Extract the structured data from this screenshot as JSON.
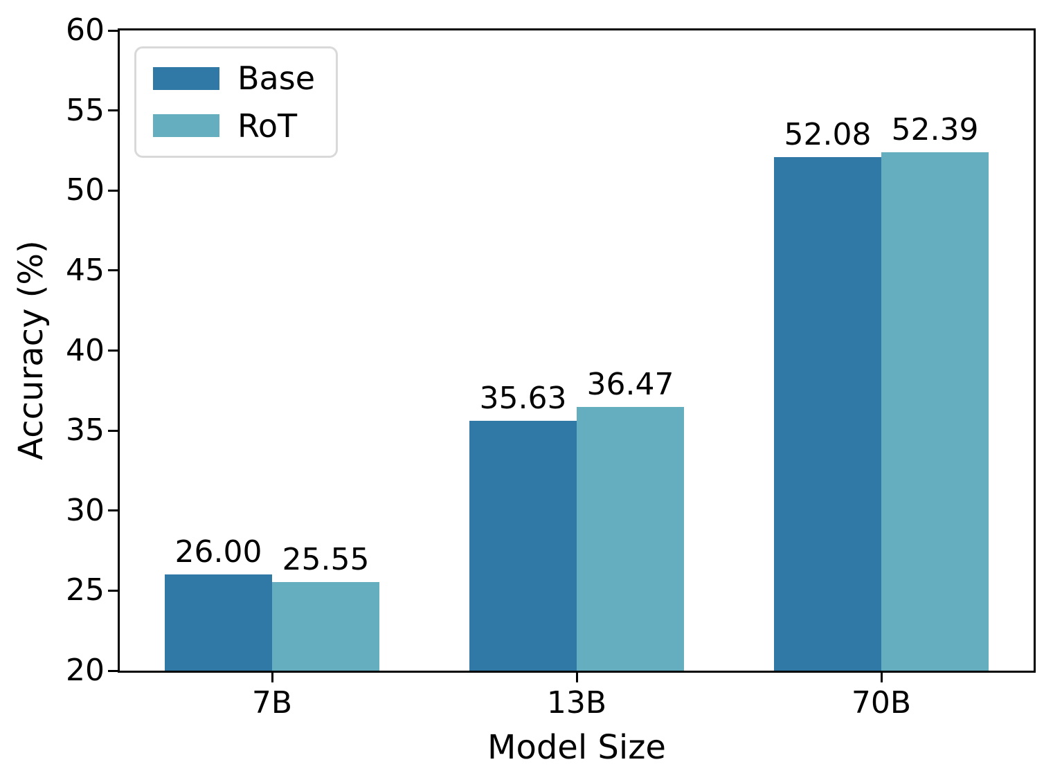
{
  "chart_data": {
    "type": "bar",
    "title": "",
    "categories": [
      "7B",
      "13B",
      "70B"
    ],
    "series": [
      {
        "name": "Base",
        "color": "#3078A6",
        "values": [
          26.0,
          35.63,
          52.08
        ],
        "value_labels": [
          "26.00",
          "35.63",
          "52.08"
        ]
      },
      {
        "name": "RoT",
        "color": "#64AEC0",
        "values": [
          25.55,
          36.47,
          52.39
        ],
        "value_labels": [
          "25.55",
          "36.47",
          "52.39"
        ]
      }
    ],
    "xlabel": "Model Size",
    "ylabel": "Accuracy (%)",
    "ylim": [
      20,
      60
    ],
    "yticks": [
      20,
      25,
      30,
      35,
      40,
      45,
      50,
      55,
      60
    ],
    "grid": false,
    "legend_position": "upper left",
    "bar_labels_shown": true
  }
}
